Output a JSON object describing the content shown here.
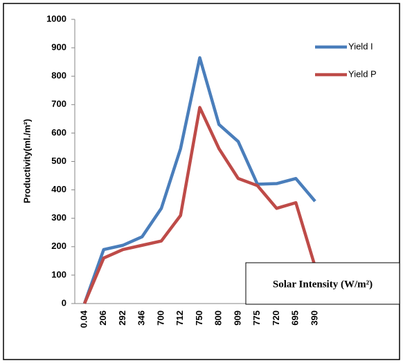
{
  "chart_data": {
    "type": "line",
    "y_label": "Productivity(ml./m²)",
    "x_label": "Solar Intensity (W/m²)",
    "categories": [
      "0.04",
      "206",
      "292",
      "346",
      "700",
      "712",
      "750",
      "800",
      "909",
      "775",
      "720",
      "695",
      "390"
    ],
    "series": [
      {
        "name": "Yield I",
        "color": "#4a7ebb",
        "values": [
          0,
          190,
          205,
          235,
          335,
          545,
          865,
          630,
          570,
          420,
          422,
          440,
          360
        ]
      },
      {
        "name": "Yield P",
        "color": "#be4b48",
        "values": [
          0,
          160,
          190,
          205,
          220,
          310,
          690,
          545,
          440,
          415,
          335,
          355,
          130
        ]
      }
    ],
    "ylim": [
      0,
      1000
    ],
    "yticks": [
      0,
      100,
      200,
      300,
      400,
      500,
      600,
      700,
      800,
      900,
      1000
    ],
    "grid": false,
    "legend": "right"
  }
}
